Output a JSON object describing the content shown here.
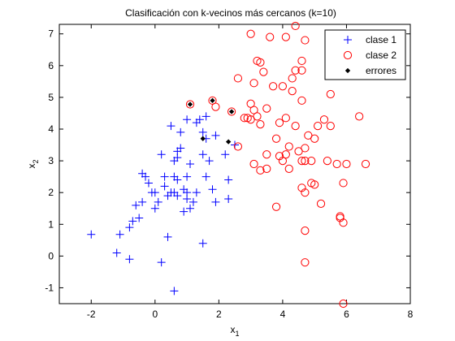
{
  "chart_data": {
    "type": "scatter",
    "title": "Clasificación con k-vecinos más cercanos (k=10)",
    "xlabel": {
      "base": "x",
      "sub": "1"
    },
    "ylabel": {
      "base": "x",
      "sub": "2"
    },
    "xlim": [
      -3,
      8
    ],
    "ylim": [
      -1.5,
      7.3
    ],
    "xticks": [
      -2,
      0,
      2,
      4,
      6,
      8
    ],
    "yticks": [
      -1,
      0,
      1,
      2,
      3,
      4,
      5,
      6,
      7
    ],
    "xtick_labels": [
      "-2",
      "0",
      "2",
      "4",
      "6",
      "8"
    ],
    "ytick_labels": [
      "-1",
      "0",
      "1",
      "2",
      "3",
      "4",
      "5",
      "6",
      "7"
    ],
    "grid": false,
    "legend_position": "top-right",
    "series": [
      {
        "name": "clase 1",
        "marker": "plus",
        "color": "#0000ff",
        "points": [
          [
            -2.0,
            0.68
          ],
          [
            -1.2,
            0.1
          ],
          [
            -1.1,
            0.68
          ],
          [
            -0.8,
            -0.1
          ],
          [
            -0.8,
            0.9
          ],
          [
            -0.7,
            1.1
          ],
          [
            -0.6,
            1.6
          ],
          [
            -0.5,
            1.2
          ],
          [
            -0.4,
            1.7
          ],
          [
            -0.4,
            2.6
          ],
          [
            -0.3,
            2.5
          ],
          [
            -0.2,
            2.3
          ],
          [
            -0.1,
            2.0
          ],
          [
            0.0,
            1.5
          ],
          [
            0.0,
            2.0
          ],
          [
            0.1,
            1.7
          ],
          [
            0.2,
            -0.2
          ],
          [
            0.2,
            3.2
          ],
          [
            0.3,
            2.5
          ],
          [
            0.3,
            2.2
          ],
          [
            0.4,
            0.6
          ],
          [
            0.4,
            1.9
          ],
          [
            0.5,
            2.0
          ],
          [
            0.5,
            4.1
          ],
          [
            0.6,
            2.0
          ],
          [
            0.6,
            2.5
          ],
          [
            0.6,
            3.0
          ],
          [
            0.6,
            -1.1
          ],
          [
            0.7,
            3.3
          ],
          [
            0.7,
            3.1
          ],
          [
            0.7,
            2.4
          ],
          [
            0.7,
            1.9
          ],
          [
            0.8,
            3.9
          ],
          [
            0.8,
            3.4
          ],
          [
            0.9,
            1.4
          ],
          [
            0.9,
            2.1
          ],
          [
            1.0,
            4.3
          ],
          [
            1.0,
            2.5
          ],
          [
            1.0,
            2.0
          ],
          [
            1.0,
            1.8
          ],
          [
            1.1,
            1.5
          ],
          [
            1.1,
            2.9
          ],
          [
            1.2,
            1.7
          ],
          [
            1.3,
            4.2
          ],
          [
            1.3,
            2.0
          ],
          [
            1.4,
            4.3
          ],
          [
            1.5,
            3.9
          ],
          [
            1.5,
            3.2
          ],
          [
            1.6,
            2.5
          ],
          [
            1.6,
            4.4
          ],
          [
            1.6,
            3.7
          ],
          [
            1.7,
            3.0
          ],
          [
            1.8,
            2.1
          ],
          [
            1.9,
            1.7
          ],
          [
            1.9,
            3.8
          ],
          [
            2.2,
            3.2
          ],
          [
            2.3,
            2.4
          ],
          [
            2.3,
            1.8
          ],
          [
            2.5,
            3.5
          ],
          [
            1.5,
            0.4
          ]
        ]
      },
      {
        "name": "clase 2",
        "marker": "circle",
        "color": "#ff0000",
        "points": [
          [
            1.1,
            4.78
          ],
          [
            1.8,
            4.9
          ],
          [
            1.9,
            4.7
          ],
          [
            2.4,
            4.55
          ],
          [
            2.6,
            3.45
          ],
          [
            2.6,
            5.6
          ],
          [
            2.8,
            4.35
          ],
          [
            2.9,
            4.35
          ],
          [
            3.0,
            7.0
          ],
          [
            3.0,
            4.3
          ],
          [
            3.0,
            4.8
          ],
          [
            3.1,
            5.45
          ],
          [
            3.1,
            2.9
          ],
          [
            3.1,
            4.6
          ],
          [
            3.2,
            4.4
          ],
          [
            3.2,
            6.15
          ],
          [
            3.3,
            2.7
          ],
          [
            3.3,
            4.15
          ],
          [
            3.3,
            6.1
          ],
          [
            3.4,
            5.8
          ],
          [
            3.5,
            3.2
          ],
          [
            3.5,
            2.75
          ],
          [
            3.5,
            4.65
          ],
          [
            3.6,
            6.9
          ],
          [
            3.7,
            5.35
          ],
          [
            3.8,
            3.7
          ],
          [
            3.8,
            1.55
          ],
          [
            3.9,
            3.15
          ],
          [
            3.9,
            4.2
          ],
          [
            4.0,
            3.0
          ],
          [
            4.0,
            5.35
          ],
          [
            4.1,
            4.35
          ],
          [
            4.1,
            6.9
          ],
          [
            4.1,
            3.2
          ],
          [
            4.2,
            2.75
          ],
          [
            4.2,
            3.45
          ],
          [
            4.3,
            5.2
          ],
          [
            4.3,
            5.6
          ],
          [
            4.4,
            5.85
          ],
          [
            4.4,
            4.1
          ],
          [
            4.4,
            7.25
          ],
          [
            4.5,
            3.3
          ],
          [
            4.6,
            3.0
          ],
          [
            4.6,
            4.9
          ],
          [
            4.6,
            5.85
          ],
          [
            4.6,
            6.15
          ],
          [
            4.6,
            2.15
          ],
          [
            4.7,
            2.0
          ],
          [
            4.7,
            0.8
          ],
          [
            4.7,
            6.8
          ],
          [
            4.7,
            -0.2
          ],
          [
            4.7,
            3.0
          ],
          [
            4.8,
            3.8
          ],
          [
            4.9,
            2.3
          ],
          [
            4.9,
            3.0
          ],
          [
            5.0,
            3.7
          ],
          [
            5.0,
            2.25
          ],
          [
            5.1,
            4.1
          ],
          [
            5.2,
            1.65
          ],
          [
            5.3,
            4.3
          ],
          [
            5.4,
            3.0
          ],
          [
            5.5,
            5.1
          ],
          [
            5.5,
            4.1
          ],
          [
            5.7,
            2.9
          ],
          [
            5.8,
            1.2
          ],
          [
            5.8,
            1.25
          ],
          [
            5.9,
            1.05
          ],
          [
            5.9,
            -1.5
          ],
          [
            5.9,
            2.3
          ],
          [
            6.0,
            2.9
          ],
          [
            6.4,
            4.4
          ],
          [
            6.6,
            2.9
          ],
          [
            4.7,
            3.4
          ]
        ]
      },
      {
        "name": "errores",
        "marker": "diamond-filled",
        "color": "#000000",
        "points": [
          [
            1.1,
            4.78
          ],
          [
            1.8,
            4.9
          ],
          [
            2.4,
            4.55
          ],
          [
            1.5,
            3.7
          ],
          [
            2.3,
            3.6
          ]
        ]
      }
    ]
  },
  "colors": {
    "background": "#ffffff",
    "axes": "#000000",
    "clase1": "#0000ff",
    "clase2": "#ff0000",
    "errores": "#000000"
  }
}
